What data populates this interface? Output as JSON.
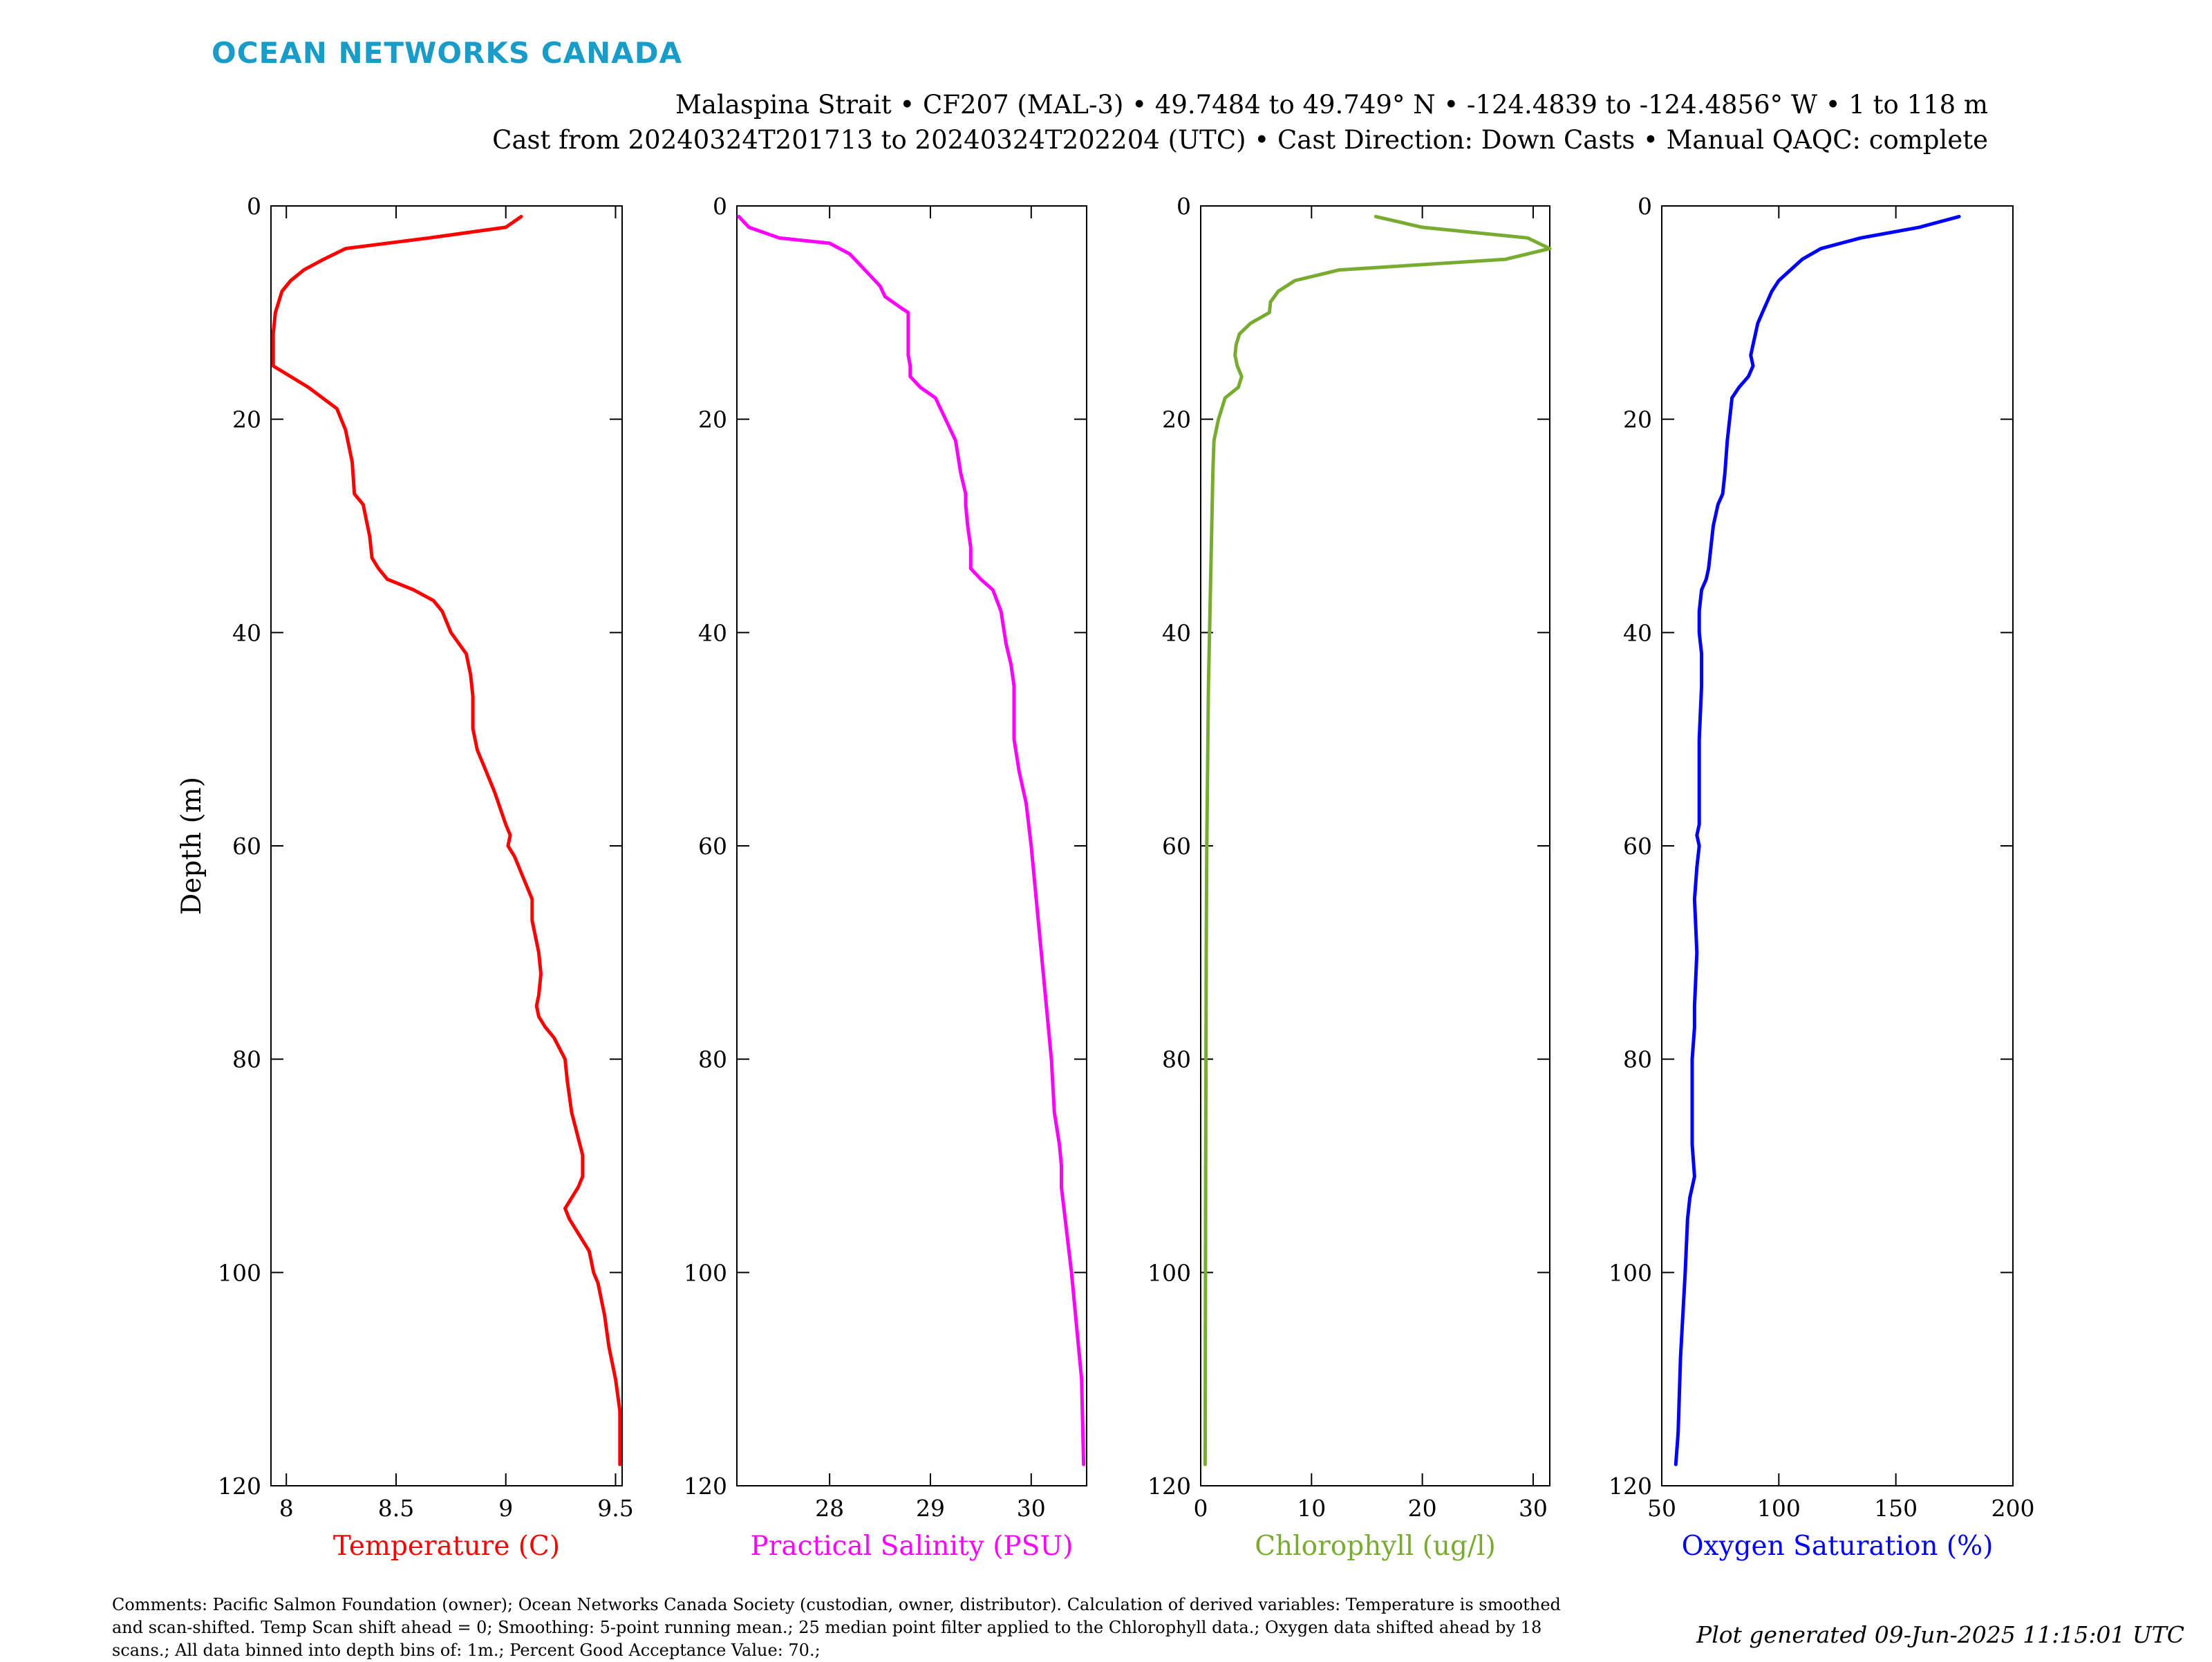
{
  "header": {
    "brand": "OCEAN NETWORKS CANADA",
    "line1": "Malaspina Strait • CF207 (MAL-3) • 49.7484 to 49.749° N • -124.4839 to -124.4856° W • 1 to 118 m",
    "line2": "Cast from 20240324T201713 to 20240324T202204 (UTC) • Cast Direction: Down Casts • Manual QAQC: complete"
  },
  "footer": {
    "comments": "Comments: Pacific Salmon Foundation (owner); Ocean Networks Canada Society (custodian, owner, distributor). Calculation of derived variables: Temperature is smoothed and scan-shifted. Temp Scan shift ahead = 0; Smoothing: 5-point running mean.; 25 median point filter applied to the Chlorophyll data.; Oxygen data shifted ahead by 18 scans.; All data binned into depth bins of: 1m.; Percent Good Acceptance Value: 70.;",
    "generated": "Plot generated 09-Jun-2025 11:15:01 UTC"
  },
  "colors": {
    "brand": "#1a9cc9",
    "temperature": "#ff0000",
    "salinity": "#ff00ff",
    "chlorophyll": "#77ac30",
    "oxygen": "#0000ff",
    "axes": "#000000"
  },
  "chart_data": [
    {
      "type": "line",
      "xlabel": "Temperature (C)",
      "ylabel": "Depth (m)",
      "xlim": [
        7.93,
        9.53
      ],
      "ylim": [
        120,
        0
      ],
      "xticks": [
        8,
        8.5,
        9,
        9.5
      ],
      "xtick_labels": [
        "8",
        "8.5",
        "9",
        "9.5"
      ],
      "yticks": [
        0,
        20,
        40,
        60,
        80,
        100,
        120
      ],
      "ytick_labels": [
        "0",
        "20",
        "40",
        "60",
        "80",
        "100",
        "120"
      ],
      "grid": false,
      "color": "#ff0000",
      "x": [
        9.07,
        9.0,
        8.65,
        8.27,
        8.17,
        8.08,
        8.02,
        7.98,
        7.95,
        7.94,
        7.94,
        8.1,
        8.23,
        8.27,
        8.3,
        8.31,
        8.35,
        8.37,
        8.38,
        8.39,
        8.42,
        8.46,
        8.58,
        8.67,
        8.71,
        8.75,
        8.82,
        8.84,
        8.85,
        8.85,
        8.87,
        8.91,
        8.95,
        9.0,
        9.02,
        9.01,
        9.04,
        9.08,
        9.12,
        9.12,
        9.15,
        9.16,
        9.15,
        9.14,
        9.15,
        9.18,
        9.22,
        9.27,
        9.28,
        9.3,
        9.35,
        9.35,
        9.33,
        9.27,
        9.29,
        9.35,
        9.38,
        9.4,
        9.42,
        9.45,
        9.47,
        9.5,
        9.52,
        9.52
      ],
      "y": [
        1,
        2,
        3,
        4,
        5,
        6,
        7,
        8,
        10,
        12,
        15,
        17,
        19,
        21,
        24,
        27,
        28,
        30,
        31,
        33,
        34,
        35,
        36,
        37,
        38,
        40,
        42,
        44,
        46,
        49,
        51,
        53,
        55,
        58,
        59,
        60,
        61,
        63,
        65,
        67,
        70,
        72,
        74,
        75,
        76,
        77,
        78,
        80,
        82,
        85,
        89,
        91,
        92,
        94,
        95,
        97,
        98,
        100,
        101,
        104,
        107,
        110,
        113,
        118
      ]
    },
    {
      "type": "line",
      "xlabel": "Practical Salinity (PSU)",
      "xlim": [
        27.08,
        30.55
      ],
      "ylim": [
        120,
        0
      ],
      "xticks": [
        28,
        29,
        30
      ],
      "xtick_labels": [
        "28",
        "29",
        "30"
      ],
      "yticks": [
        0,
        20,
        40,
        60,
        80,
        100,
        120
      ],
      "ytick_labels": [
        "0",
        "20",
        "40",
        "60",
        "80",
        "100",
        "120"
      ],
      "grid": false,
      "color": "#ff00ff",
      "x": [
        27.1,
        27.2,
        27.5,
        28.0,
        28.2,
        28.3,
        28.4,
        28.5,
        28.55,
        28.7,
        28.78,
        28.78,
        28.78,
        28.8,
        28.8,
        28.9,
        29.05,
        29.15,
        29.25,
        29.3,
        29.35,
        29.35,
        29.37,
        29.4,
        29.4,
        29.5,
        29.62,
        29.7,
        29.75,
        29.8,
        29.83,
        29.83,
        29.83,
        29.88,
        29.95,
        30.0,
        30.05,
        30.1,
        30.15,
        30.2,
        30.23,
        30.28,
        30.3,
        30.3,
        30.35,
        30.4,
        30.45,
        30.5,
        30.52
      ],
      "y": [
        1,
        2,
        3,
        3.5,
        4.5,
        5.5,
        6.5,
        7.5,
        8.5,
        9.5,
        10,
        12,
        14,
        15,
        16,
        17,
        18,
        20,
        22,
        25,
        27,
        28,
        30,
        32,
        34,
        35,
        36,
        38,
        41,
        43,
        45,
        48,
        50,
        53,
        56,
        60,
        65,
        70,
        75,
        80,
        85,
        88,
        90,
        92,
        96,
        100,
        105,
        110,
        118
      ]
    },
    {
      "type": "line",
      "xlabel": "Chlorophyll (ug/l)",
      "xlim": [
        0,
        31.5
      ],
      "ylim": [
        120,
        0
      ],
      "xticks": [
        0,
        10,
        20,
        30
      ],
      "xtick_labels": [
        "0",
        "10",
        "20",
        "30"
      ],
      "yticks": [
        0,
        20,
        40,
        60,
        80,
        100,
        120
      ],
      "ytick_labels": [
        "0",
        "20",
        "40",
        "60",
        "80",
        "100",
        "120"
      ],
      "grid": false,
      "color": "#77ac30",
      "x": [
        15.8,
        20.0,
        29.5,
        31.5,
        27.5,
        12.5,
        8.5,
        7.0,
        6.3,
        6.2,
        4.5,
        3.5,
        3.2,
        3.1,
        3.3,
        3.7,
        3.4,
        2.2,
        1.6,
        1.2,
        1.1,
        1.0,
        0.9,
        0.8,
        0.7,
        0.6,
        0.55,
        0.5,
        0.45,
        0.4
      ],
      "y": [
        1,
        2,
        3,
        4,
        5,
        6,
        7,
        8,
        9,
        10,
        11,
        12,
        13,
        14,
        15,
        16,
        17,
        18,
        20,
        22,
        25,
        30,
        35,
        40,
        45,
        55,
        60,
        70,
        90,
        118
      ]
    },
    {
      "type": "line",
      "xlabel": "Oxygen Saturation (%)",
      "xlim": [
        50,
        200
      ],
      "ylim": [
        120,
        0
      ],
      "xticks": [
        50,
        100,
        150,
        200
      ],
      "xtick_labels": [
        "50",
        "100",
        "150",
        "200"
      ],
      "yticks": [
        0,
        20,
        40,
        60,
        80,
        100,
        120
      ],
      "ytick_labels": [
        "0",
        "20",
        "40",
        "60",
        "80",
        "100",
        "120"
      ],
      "grid": false,
      "color": "#0000ff",
      "x": [
        177,
        160,
        135,
        118,
        110,
        105,
        100,
        97,
        95,
        93,
        91,
        90,
        89,
        88,
        89,
        87,
        83,
        80,
        79,
        78,
        77,
        76,
        74,
        72,
        71,
        70,
        69,
        67,
        66,
        66,
        67,
        67,
        66,
        66,
        66,
        65,
        66,
        65,
        64,
        65,
        64,
        64,
        63,
        63,
        64,
        62,
        61,
        60,
        58,
        57,
        56
      ],
      "y": [
        1,
        2,
        3,
        4,
        5,
        6,
        7,
        8,
        9,
        10,
        11,
        12,
        13,
        14,
        15,
        16,
        17,
        18,
        20,
        22,
        25,
        27,
        28,
        30,
        32,
        34,
        35,
        36,
        38,
        40,
        42,
        45,
        50,
        55,
        58,
        59,
        60,
        62,
        65,
        70,
        75,
        77,
        80,
        88,
        91,
        93,
        95,
        100,
        108,
        115,
        118
      ]
    }
  ]
}
